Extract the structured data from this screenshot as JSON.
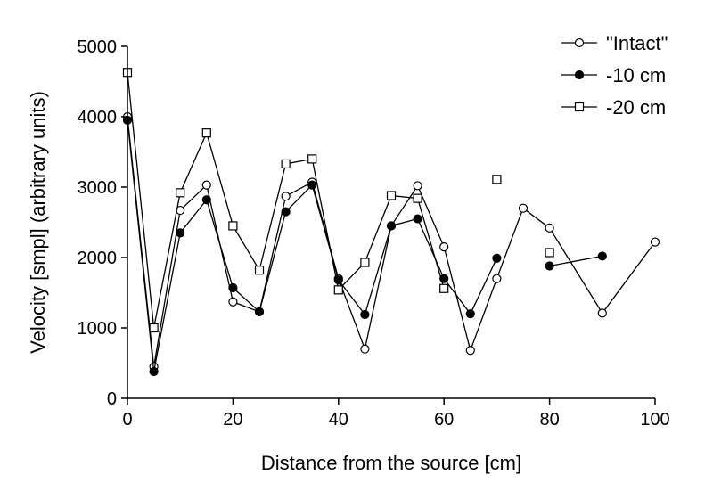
{
  "chart_data": {
    "type": "line",
    "title": "",
    "xlabel": "Distance from the source [cm]",
    "ylabel": "Velocity [smpl] (arbitrary units)",
    "xlim": [
      0,
      100
    ],
    "ylim": [
      0,
      5000
    ],
    "xticks": [
      "0",
      "20",
      "40",
      "60",
      "80",
      "100"
    ],
    "yticks": [
      "0",
      "1000",
      "2000",
      "3000",
      "4000",
      "5000"
    ],
    "grid": false,
    "legend_position": "top-right",
    "series": [
      {
        "name": "\"Intact\"",
        "marker": "open-circle",
        "segments": [
          [
            [
              0,
              4000
            ],
            [
              5,
              450
            ],
            [
              10,
              2670
            ],
            [
              15,
              3030
            ],
            [
              20,
              1370
            ],
            [
              25,
              1230
            ],
            [
              30,
              2870
            ],
            [
              35,
              3070
            ],
            [
              40,
              1700
            ],
            [
              45,
              700
            ],
            [
              50,
              2450
            ],
            [
              55,
              3020
            ],
            [
              60,
              2150
            ],
            [
              65,
              680
            ],
            [
              70,
              1700
            ],
            [
              75,
              2700
            ],
            [
              80,
              2420
            ],
            [
              90,
              1210
            ],
            [
              100,
              2220
            ]
          ]
        ]
      },
      {
        "name": "-10 cm",
        "marker": "filled-circle",
        "segments": [
          [
            [
              0,
              3950
            ],
            [
              5,
              380
            ],
            [
              10,
              2350
            ],
            [
              15,
              2820
            ],
            [
              20,
              1570
            ],
            [
              25,
              1230
            ],
            [
              30,
              2650
            ],
            [
              35,
              3030
            ],
            [
              40,
              1680
            ],
            [
              45,
              1190
            ],
            [
              50,
              2450
            ],
            [
              55,
              2550
            ],
            [
              60,
              1700
            ],
            [
              65,
              1200
            ],
            [
              70,
              1990
            ]
          ],
          [
            [
              80,
              1880
            ],
            [
              90,
              2020
            ]
          ]
        ]
      },
      {
        "name": "-20 cm",
        "marker": "open-square",
        "segments": [
          [
            [
              0,
              4630
            ],
            [
              5,
              1000
            ],
            [
              10,
              2920
            ],
            [
              15,
              3770
            ],
            [
              20,
              2450
            ],
            [
              25,
              1820
            ],
            [
              30,
              3330
            ],
            [
              35,
              3400
            ],
            [
              40,
              1540
            ],
            [
              45,
              1930
            ],
            [
              50,
              2880
            ],
            [
              55,
              2840
            ],
            [
              60,
              1560
            ]
          ],
          [
            [
              70,
              3110
            ]
          ],
          [
            [
              80,
              2070
            ]
          ]
        ]
      }
    ]
  }
}
